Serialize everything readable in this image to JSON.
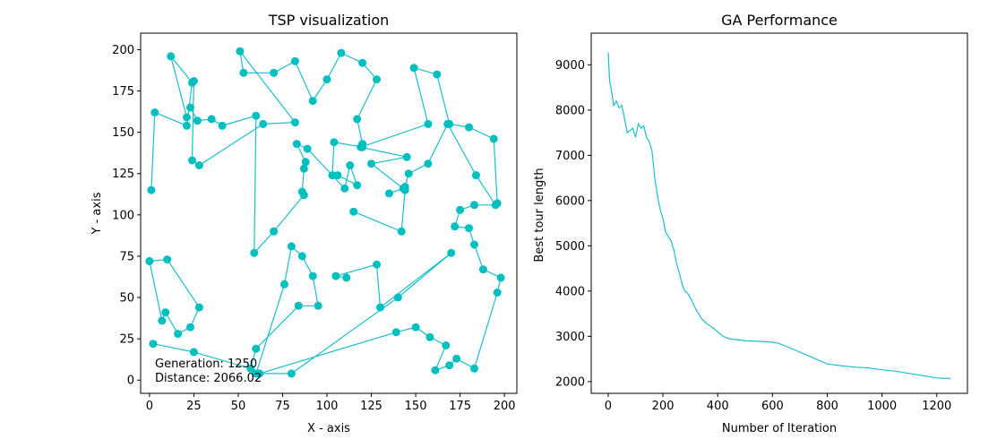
{
  "colors": {
    "line": "#17becf",
    "marker": "#00bfbf",
    "axis": "#000000"
  },
  "chart_data": [
    {
      "type": "line",
      "title": "TSP visualization",
      "xlabel": "X - axis",
      "ylabel": "Y - axis",
      "xlim": [
        -5,
        207
      ],
      "ylim": [
        -8,
        210
      ],
      "xticks": [
        0,
        25,
        50,
        75,
        100,
        125,
        150,
        175,
        200
      ],
      "yticks": [
        0,
        25,
        50,
        75,
        100,
        125,
        150,
        175,
        200
      ],
      "grid": false,
      "annotations": [
        "Generation: 1250",
        "Distance: 2066.02"
      ],
      "route": [
        [
          1,
          115
        ],
        [
          3,
          162
        ],
        [
          21,
          154
        ],
        [
          24,
          180
        ],
        [
          12,
          196
        ],
        [
          21,
          159
        ],
        [
          23,
          165
        ],
        [
          27,
          157
        ],
        [
          35,
          158
        ],
        [
          41,
          154
        ],
        [
          60,
          160
        ],
        [
          59,
          77
        ],
        [
          70,
          90
        ],
        [
          87,
          112
        ],
        [
          86,
          114
        ],
        [
          87,
          128
        ],
        [
          88,
          132
        ],
        [
          83,
          143
        ],
        [
          89,
          140
        ],
        [
          110,
          116
        ],
        [
          113,
          130
        ],
        [
          117,
          118
        ],
        [
          106,
          124
        ],
        [
          103,
          124
        ],
        [
          104,
          144
        ],
        [
          120,
          141
        ],
        [
          120,
          143
        ],
        [
          117,
          158
        ],
        [
          128,
          182
        ],
        [
          120,
          192
        ],
        [
          108,
          198
        ],
        [
          100,
          182
        ],
        [
          92,
          169
        ],
        [
          82,
          193
        ],
        [
          70,
          186
        ],
        [
          53,
          186
        ],
        [
          51,
          199
        ],
        [
          82,
          156
        ],
        [
          64,
          155
        ],
        [
          28,
          130
        ],
        [
          24,
          133
        ],
        [
          25,
          181
        ]
      ],
      "route2": [
        [
          115,
          102
        ],
        [
          142,
          90
        ],
        [
          144,
          115
        ],
        [
          144,
          117
        ],
        [
          146,
          125
        ],
        [
          157,
          131
        ],
        [
          168,
          155
        ],
        [
          184,
          124
        ],
        [
          195,
          106
        ],
        [
          183,
          106
        ],
        [
          175,
          103
        ],
        [
          172,
          93
        ],
        [
          180,
          92
        ],
        [
          183,
          82
        ],
        [
          188,
          67
        ],
        [
          198,
          62
        ],
        [
          196,
          53
        ],
        [
          183,
          7
        ],
        [
          173,
          13
        ],
        [
          169,
          9
        ],
        [
          161,
          6
        ],
        [
          167,
          21
        ],
        [
          158,
          26
        ],
        [
          150,
          32
        ],
        [
          139,
          29
        ],
        [
          62,
          4
        ],
        [
          80,
          4
        ],
        [
          140,
          50
        ],
        [
          170,
          77
        ],
        [
          130,
          44
        ],
        [
          128,
          70
        ],
        [
          105,
          63
        ],
        [
          111,
          62
        ]
      ],
      "route3": [
        [
          0,
          72
        ],
        [
          10,
          73
        ],
        [
          28,
          44
        ],
        [
          23,
          32
        ],
        [
          16,
          28
        ],
        [
          9,
          41
        ],
        [
          7,
          36
        ],
        [
          0,
          72
        ]
      ],
      "route4": [
        [
          2,
          22
        ],
        [
          25,
          17
        ],
        [
          57,
          7
        ],
        [
          60,
          19
        ],
        [
          84,
          45
        ],
        [
          95,
          45
        ],
        [
          92,
          63
        ],
        [
          86,
          75
        ],
        [
          80,
          81
        ],
        [
          76,
          58
        ],
        [
          60,
          4
        ]
      ],
      "route5": [
        [
          135,
          113
        ],
        [
          143,
          116
        ],
        [
          125,
          131
        ],
        [
          145,
          135
        ],
        [
          119,
          141
        ],
        [
          157,
          155
        ],
        [
          149,
          189
        ],
        [
          162,
          185
        ],
        [
          169,
          155
        ],
        [
          180,
          153
        ],
        [
          194,
          146
        ],
        [
          196,
          107
        ]
      ]
    },
    {
      "type": "line",
      "title": "GA Performance",
      "xlabel": "Number of Iteration",
      "ylabel": "Best tour length",
      "xlim": [
        -62,
        1312
      ],
      "ylim": [
        1740,
        9700
      ],
      "xticks": [
        0,
        200,
        400,
        600,
        800,
        1000,
        1200
      ],
      "yticks": [
        2000,
        3000,
        4000,
        5000,
        6000,
        7000,
        8000,
        9000
      ],
      "grid": false,
      "x": [
        0,
        5,
        10,
        20,
        30,
        40,
        50,
        60,
        70,
        80,
        90,
        100,
        110,
        120,
        130,
        140,
        150,
        160,
        170,
        180,
        190,
        200,
        210,
        220,
        230,
        240,
        250,
        260,
        270,
        280,
        290,
        300,
        320,
        340,
        360,
        380,
        400,
        420,
        440,
        460,
        480,
        500,
        550,
        600,
        620,
        650,
        700,
        750,
        800,
        850,
        900,
        950,
        1000,
        1050,
        1100,
        1150,
        1200,
        1250
      ],
      "y": [
        9270,
        8650,
        8500,
        8100,
        8200,
        8050,
        8100,
        7800,
        7500,
        7550,
        7600,
        7400,
        7700,
        7600,
        7650,
        7400,
        7300,
        7100,
        6500,
        6100,
        5800,
        5600,
        5300,
        5200,
        5100,
        4900,
        4600,
        4400,
        4150,
        4000,
        3950,
        3850,
        3600,
        3400,
        3280,
        3200,
        3100,
        3000,
        2950,
        2930,
        2920,
        2900,
        2890,
        2870,
        2850,
        2780,
        2650,
        2520,
        2390,
        2350,
        2320,
        2300,
        2260,
        2230,
        2180,
        2130,
        2080,
        2066
      ]
    }
  ]
}
